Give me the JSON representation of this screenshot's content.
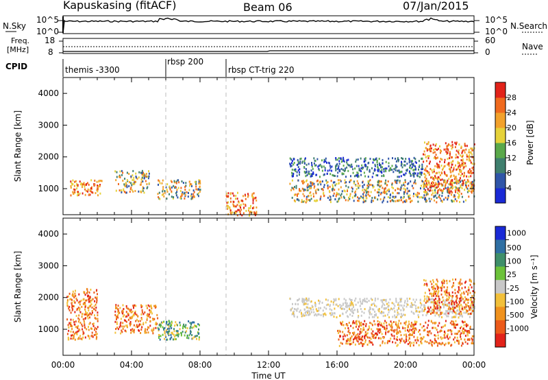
{
  "header": {
    "station": "Kapuskasing (fitACF)",
    "beam": "Beam 06",
    "date": "07/Jan/2015"
  },
  "top_panels": {
    "nsky_label": "N.Sky",
    "nsky_ticks": [
      "10^5",
      "10^0"
    ],
    "nsearch_label": "N.Search",
    "nsearch_ticks": [
      "10^5",
      "10^0"
    ],
    "freq_label_1": "Freq.",
    "freq_label_2": "[MHz]",
    "freq_ticks": [
      "8",
      "18"
    ],
    "nave_label": "Nave",
    "nave_ticks": [
      "60",
      "0"
    ],
    "cpid_label": "CPID",
    "cpid_segments": [
      {
        "label": "themis -3300",
        "start_hour": 0
      },
      {
        "label": "rbsp 200",
        "start_hour": 6
      },
      {
        "label": "rbsp CT-trig 220",
        "start_hour": 9.5
      }
    ]
  },
  "x_axis": {
    "label": "Time UT",
    "ticks": [
      "00:00",
      "04:00",
      "08:00",
      "12:00",
      "16:00",
      "20:00",
      "00:00"
    ],
    "range_hours": [
      0,
      24
    ]
  },
  "y_axis": {
    "label": "Slant Range [km]",
    "ticks": [
      "1000",
      "2000",
      "3000",
      "4000"
    ],
    "range_km": [
      180,
      4500
    ]
  },
  "power_colorbar": {
    "label": "Power [dB]",
    "ticks": [
      "4",
      "8",
      "12",
      "16",
      "20",
      "24",
      "28"
    ],
    "colors": [
      "#1a2ad6",
      "#2f55a8",
      "#3f7f6e",
      "#5aa84a",
      "#e6d23a",
      "#f2a12b",
      "#f06a1e",
      "#e2231a"
    ]
  },
  "velocity_colorbar": {
    "label": "Velocity [m s⁻¹]",
    "ticks": [
      "1000",
      "500",
      "100",
      "25",
      "-25",
      "-100",
      "-500",
      "-1000"
    ],
    "colors": [
      "#1a2ad6",
      "#2f6fa3",
      "#3f8f6a",
      "#6cc23a",
      "#c8c8c8",
      "#f2c03a",
      "#f0921e",
      "#ec5a1a",
      "#e2231a"
    ]
  },
  "chart_data": [
    {
      "type": "heatmap",
      "title": "Power",
      "xlabel": "Time UT",
      "ylabel": "Slant Range [km]",
      "x_range_hours": [
        0,
        24
      ],
      "y_range_km": [
        180,
        4500
      ],
      "colorbar_label": "Power [dB]",
      "features": [
        {
          "t0": 0.4,
          "t1": 2.3,
          "r0": 800,
          "r1": 1300,
          "level": "high"
        },
        {
          "t0": 3.0,
          "t1": 5.0,
          "r0": 900,
          "r1": 1600,
          "level": "mid"
        },
        {
          "t0": 5.5,
          "t1": 8.0,
          "r0": 700,
          "r1": 1300,
          "level": "mid"
        },
        {
          "t0": 9.5,
          "t1": 11.3,
          "r0": 180,
          "r1": 900,
          "level": "high"
        },
        {
          "t0": 13.2,
          "t1": 21.0,
          "r0": 1400,
          "r1": 2000,
          "level": "low"
        },
        {
          "t0": 13.2,
          "t1": 24.0,
          "r0": 600,
          "r1": 1300,
          "level": "mid"
        },
        {
          "t0": 21.0,
          "t1": 24.0,
          "r0": 900,
          "r1": 2500,
          "level": "high"
        }
      ]
    },
    {
      "type": "heatmap",
      "title": "Velocity",
      "xlabel": "Time UT",
      "ylabel": "Slant Range [km]",
      "x_range_hours": [
        0,
        24
      ],
      "y_range_km": [
        180,
        4500
      ],
      "colorbar_label": "Velocity [m s⁻¹]",
      "features": [
        {
          "t0": 0.2,
          "t1": 2.0,
          "r0": 700,
          "r1": 2300,
          "level": "neg"
        },
        {
          "t0": 3.0,
          "t1": 5.5,
          "r0": 900,
          "r1": 1800,
          "level": "neg"
        },
        {
          "t0": 5.5,
          "t1": 8.0,
          "r0": 700,
          "r1": 1300,
          "level": "pos"
        },
        {
          "t0": 13.2,
          "t1": 24.0,
          "r0": 1400,
          "r1": 2000,
          "level": "zero"
        },
        {
          "t0": 16.0,
          "t1": 24.0,
          "r0": 500,
          "r1": 1300,
          "level": "neg"
        },
        {
          "t0": 21.0,
          "t1": 24.0,
          "r0": 1500,
          "r1": 2600,
          "level": "neg"
        }
      ]
    }
  ]
}
